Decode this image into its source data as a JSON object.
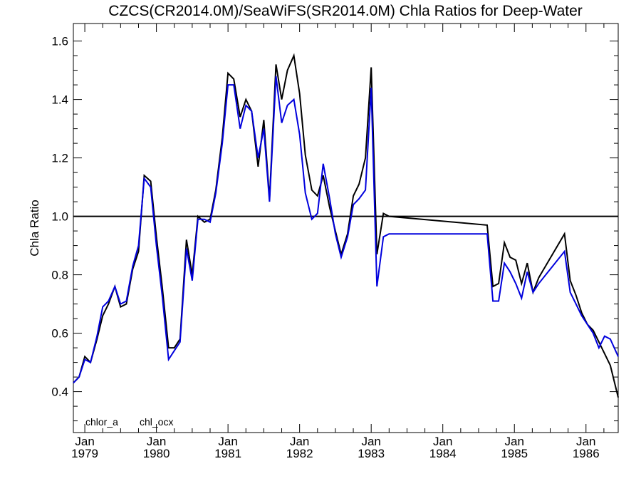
{
  "chart_data": {
    "type": "line",
    "title": "CZCS(CR2014.0M)/SeaWiFS(SR2014.0M)  Chla Ratios for Deep-Water",
    "ylabel": "Chla Ratio",
    "xlabel": "",
    "xlim": [
      1978.84,
      1986.45
    ],
    "ylim": [
      0.26,
      1.66
    ],
    "y_ticks": [
      0.4,
      0.6,
      0.8,
      1.0,
      1.2,
      1.4,
      1.6
    ],
    "y_tick_labels": [
      "0.4",
      "0.6",
      "0.8",
      "1.0",
      "1.2",
      "1.4",
      "1.6"
    ],
    "x_ticks": [
      {
        "value": 1979,
        "month": "Jan",
        "year": "1979"
      },
      {
        "value": 1980,
        "month": "Jan",
        "year": "1980"
      },
      {
        "value": 1981,
        "month": "Jan",
        "year": "1981"
      },
      {
        "value": 1982,
        "month": "Jan",
        "year": "1982"
      },
      {
        "value": 1983,
        "month": "Jan",
        "year": "1983"
      },
      {
        "value": 1984,
        "month": "Jan",
        "year": "1984"
      },
      {
        "value": 1985,
        "month": "Jan",
        "year": "1985"
      },
      {
        "value": 1986,
        "month": "Jan",
        "year": "1986"
      }
    ],
    "reference_line": 1.0,
    "grid": false,
    "legend_position": "bottom-left",
    "series": [
      {
        "name": "chlor_a",
        "color": "#000000",
        "x": [
          1978.84,
          1978.92,
          1979.0,
          1979.08,
          1979.17,
          1979.25,
          1979.33,
          1979.42,
          1979.5,
          1979.58,
          1979.67,
          1979.75,
          1979.83,
          1979.92,
          1980.0,
          1980.08,
          1980.17,
          1980.25,
          1980.33,
          1980.42,
          1980.5,
          1980.58,
          1980.67,
          1980.75,
          1980.83,
          1980.92,
          1981.0,
          1981.08,
          1981.17,
          1981.25,
          1981.33,
          1981.42,
          1981.5,
          1981.58,
          1981.67,
          1981.75,
          1981.83,
          1981.92,
          1982.0,
          1982.08,
          1982.17,
          1982.25,
          1982.33,
          1982.42,
          1982.5,
          1982.58,
          1982.67,
          1982.75,
          1982.83,
          1982.92,
          1983.0,
          1983.08,
          1983.17,
          1983.25,
          1984.62,
          1984.7,
          1984.78,
          1984.86,
          1984.94,
          1985.02,
          1985.1,
          1985.18,
          1985.26,
          1985.34,
          1985.7,
          1985.78,
          1985.86,
          1985.94,
          1986.02,
          1986.1,
          1986.18,
          1986.26,
          1986.34,
          1986.45
        ],
        "values": [
          0.43,
          0.45,
          0.52,
          0.5,
          0.58,
          0.66,
          0.7,
          0.76,
          0.69,
          0.7,
          0.82,
          0.88,
          1.14,
          1.12,
          0.93,
          0.76,
          0.55,
          0.55,
          0.58,
          0.92,
          0.8,
          1.0,
          0.98,
          0.99,
          1.09,
          1.27,
          1.49,
          1.47,
          1.34,
          1.4,
          1.36,
          1.17,
          1.33,
          1.06,
          1.52,
          1.4,
          1.5,
          1.55,
          1.42,
          1.21,
          1.09,
          1.07,
          1.14,
          1.03,
          0.95,
          0.87,
          0.94,
          1.07,
          1.11,
          1.2,
          1.51,
          0.87,
          1.01,
          1.0,
          0.97,
          0.76,
          0.77,
          0.91,
          0.86,
          0.85,
          0.77,
          0.84,
          0.74,
          0.79,
          0.94,
          0.78,
          0.73,
          0.67,
          0.63,
          0.61,
          0.57,
          0.53,
          0.49,
          0.38
        ]
      },
      {
        "name": "chl_ocx",
        "color": "#0000dd",
        "x": [
          1978.84,
          1978.92,
          1979.0,
          1979.08,
          1979.17,
          1979.25,
          1979.33,
          1979.42,
          1979.5,
          1979.58,
          1979.67,
          1979.75,
          1979.83,
          1979.92,
          1980.0,
          1980.08,
          1980.17,
          1980.25,
          1980.33,
          1980.42,
          1980.5,
          1980.58,
          1980.67,
          1980.75,
          1980.83,
          1980.92,
          1981.0,
          1981.08,
          1981.17,
          1981.25,
          1981.33,
          1981.42,
          1981.5,
          1981.58,
          1981.67,
          1981.75,
          1981.83,
          1981.92,
          1982.0,
          1982.08,
          1982.17,
          1982.25,
          1982.33,
          1982.42,
          1982.5,
          1982.58,
          1982.67,
          1982.75,
          1982.83,
          1982.92,
          1983.0,
          1983.08,
          1983.17,
          1983.25,
          1984.62,
          1984.7,
          1984.78,
          1984.86,
          1984.94,
          1985.02,
          1985.1,
          1985.18,
          1985.26,
          1985.34,
          1985.7,
          1985.78,
          1985.86,
          1985.94,
          1986.02,
          1986.1,
          1986.18,
          1986.26,
          1986.34,
          1986.45
        ],
        "values": [
          0.43,
          0.45,
          0.51,
          0.5,
          0.59,
          0.69,
          0.71,
          0.76,
          0.7,
          0.71,
          0.83,
          0.9,
          1.13,
          1.1,
          0.9,
          0.73,
          0.51,
          0.54,
          0.57,
          0.89,
          0.78,
          0.99,
          0.99,
          0.98,
          1.08,
          1.25,
          1.45,
          1.45,
          1.3,
          1.38,
          1.36,
          1.2,
          1.3,
          1.05,
          1.48,
          1.32,
          1.38,
          1.4,
          1.28,
          1.08,
          0.99,
          1.01,
          1.18,
          1.06,
          0.94,
          0.86,
          0.93,
          1.04,
          1.06,
          1.09,
          1.44,
          0.76,
          0.93,
          0.94,
          0.94,
          0.71,
          0.71,
          0.84,
          0.81,
          0.77,
          0.72,
          0.81,
          0.74,
          0.77,
          0.88,
          0.74,
          0.7,
          0.66,
          0.63,
          0.6,
          0.55,
          0.59,
          0.58,
          0.52
        ]
      }
    ]
  }
}
